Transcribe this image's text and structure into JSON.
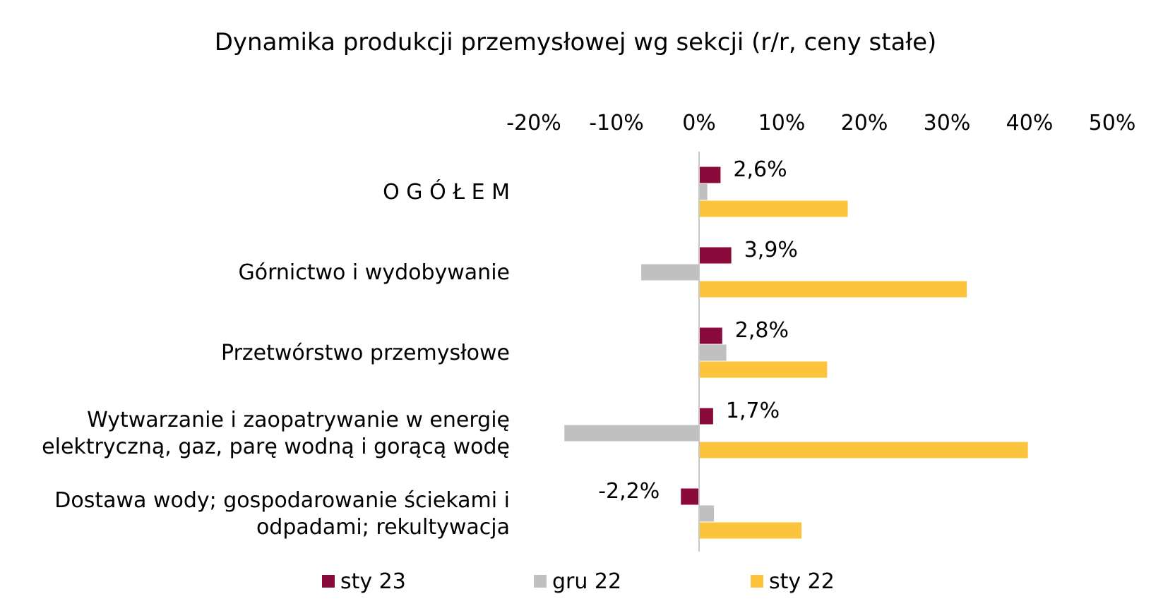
{
  "chart_data": {
    "type": "bar",
    "orientation": "horizontal",
    "title": "Dynamika produkcji przemysłowej wg sekcji (r/r, ceny stałe)",
    "x_axis_position": "top",
    "xlim": [
      -20,
      50
    ],
    "x_ticks": [
      -20,
      -10,
      0,
      10,
      20,
      30,
      40,
      50
    ],
    "x_tick_labels": [
      "-20%",
      "-10%",
      "0%",
      "10%",
      "20%",
      "30%",
      "40%",
      "50%"
    ],
    "categories": [
      [
        "O G Ó Ł E M"
      ],
      [
        "Górnictwo i wydobywanie"
      ],
      [
        "Przetwórstwo przemysłowe"
      ],
      [
        "Wytwarzanie i zaopatrywanie w energię",
        "elektryczną, gaz, parę wodną i gorącą wodę"
      ],
      [
        "Dostawa wody; gospodarowanie ściekami i",
        "odpadami; rekultywacja"
      ]
    ],
    "series": [
      {
        "name": "sty 23",
        "color": "#8B0A3C",
        "values": [
          2.6,
          3.9,
          2.8,
          1.7,
          -2.2
        ],
        "data_labels": [
          "2,6%",
          "3,9%",
          "2,8%",
          "1,7%",
          "-2,2%"
        ]
      },
      {
        "name": "gru 22",
        "color": "#C0C0C0",
        "values": [
          1.0,
          -7.0,
          3.3,
          -16.3,
          1.8
        ]
      },
      {
        "name": "sty 22",
        "color": "#FCC43C",
        "values": [
          18.0,
          32.4,
          15.5,
          39.8,
          12.4
        ]
      }
    ],
    "grid": false,
    "legend_position": "bottom"
  }
}
